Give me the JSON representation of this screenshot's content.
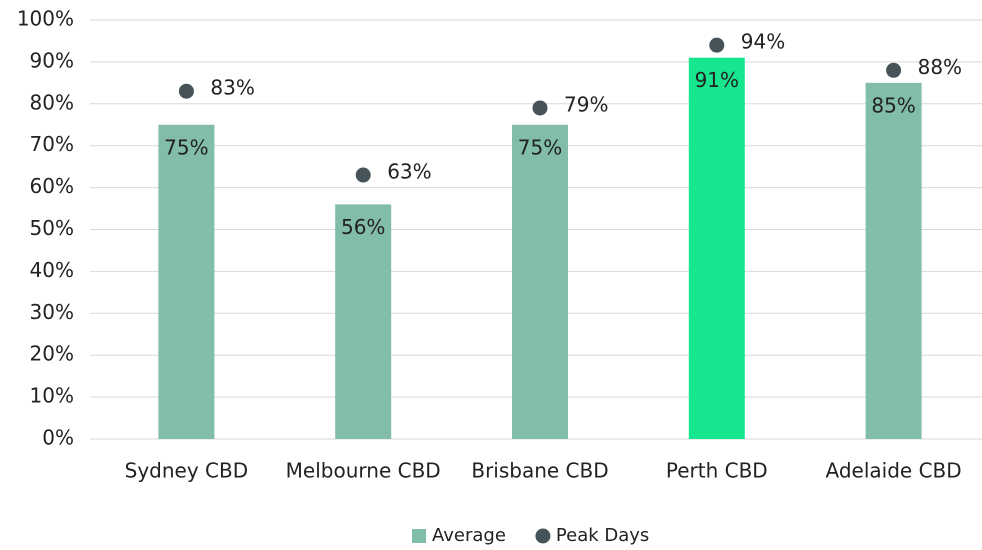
{
  "chart_data": {
    "type": "bar",
    "categories": [
      "Sydney CBD",
      "Melbourne CBD",
      "Brisbane CBD",
      "Perth CBD",
      "Adelaide CBD"
    ],
    "series": [
      {
        "name": "Average",
        "type": "bar",
        "color": "#82bcab",
        "colors": [
          "#82bcab",
          "#82bcab",
          "#82bcab",
          "#17e68f",
          "#82bcab"
        ],
        "values": [
          75,
          56,
          75,
          91,
          85
        ],
        "value_labels": [
          "75%",
          "56%",
          "75%",
          "91%",
          "85%"
        ]
      },
      {
        "name": "Peak Days",
        "type": "scatter",
        "color": "#465459",
        "values": [
          83,
          63,
          79,
          94,
          88
        ],
        "value_labels": [
          "83%",
          "63%",
          "79%",
          "94%",
          "88%"
        ]
      }
    ],
    "ylim": [
      0,
      100
    ],
    "yticks": [
      {
        "value": 0,
        "label": "0%"
      },
      {
        "value": 10,
        "label": "10%"
      },
      {
        "value": 20,
        "label": "20%"
      },
      {
        "value": 30,
        "label": "30%"
      },
      {
        "value": 40,
        "label": "40%"
      },
      {
        "value": 50,
        "label": "50%"
      },
      {
        "value": 60,
        "label": "60%"
      },
      {
        "value": 70,
        "label": "70%"
      },
      {
        "value": 80,
        "label": "80%"
      },
      {
        "value": 90,
        "label": "90%"
      },
      {
        "value": 100,
        "label": "100%"
      }
    ],
    "grid": true,
    "legend": "bottom"
  }
}
